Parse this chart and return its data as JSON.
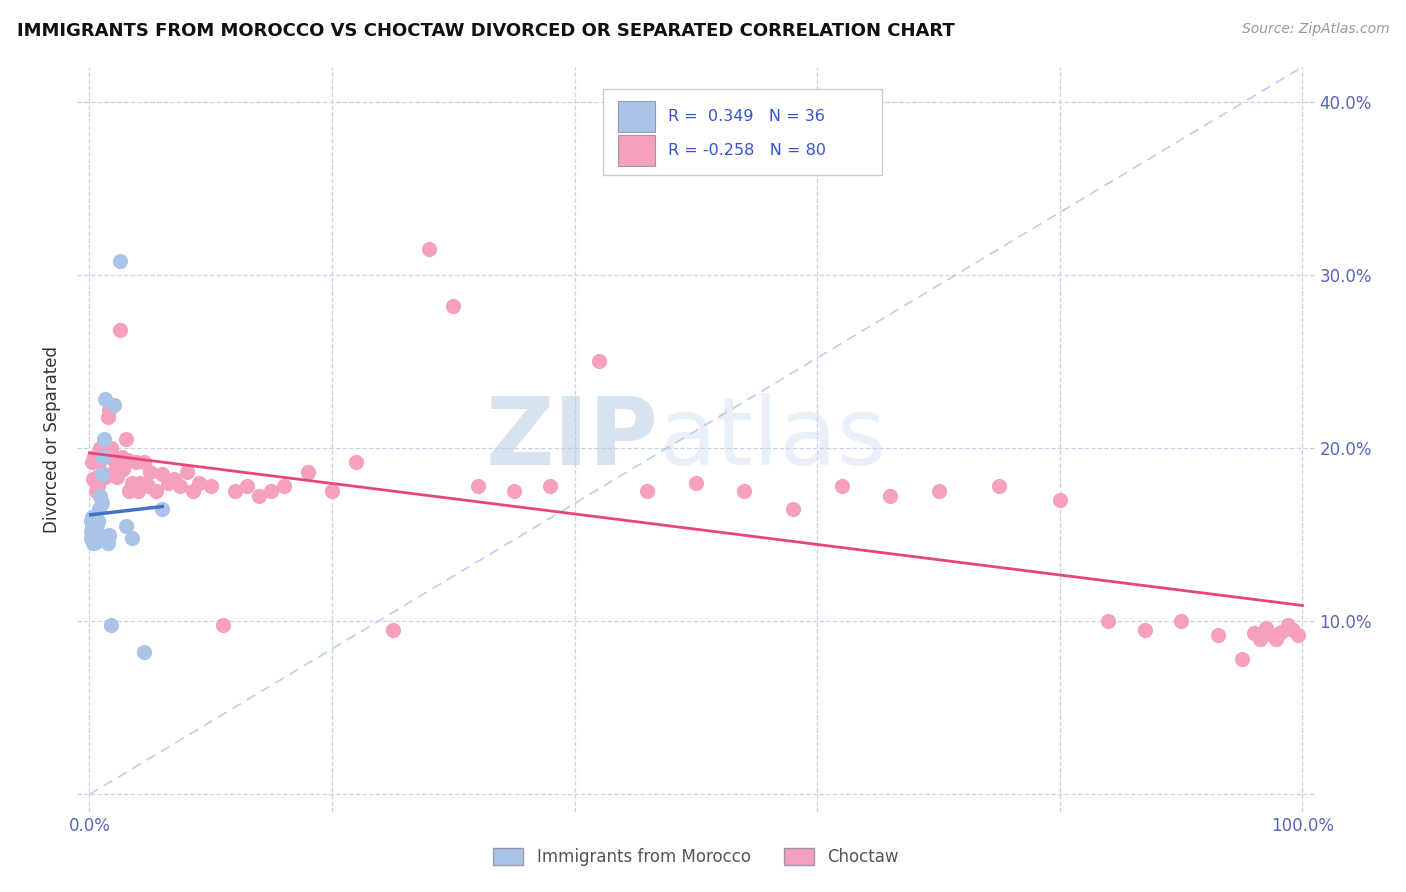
{
  "title": "IMMIGRANTS FROM MOROCCO VS CHOCTAW DIVORCED OR SEPARATED CORRELATION CHART",
  "source": "Source: ZipAtlas.com",
  "ylabel": "Divorced or Separated",
  "xlim": [
    -0.01,
    1.01
  ],
  "ylim": [
    -0.01,
    0.42
  ],
  "x_ticks": [
    0.0,
    0.2,
    0.4,
    0.6,
    0.8,
    1.0
  ],
  "x_tick_labels": [
    "0.0%",
    "",
    "",
    "",
    "",
    "100.0%"
  ],
  "y_ticks": [
    0.0,
    0.1,
    0.2,
    0.3,
    0.4
  ],
  "y_tick_labels_right": [
    "",
    "10.0%",
    "20.0%",
    "30.0%",
    "40.0%"
  ],
  "color_blue": "#aac4e8",
  "color_pink": "#f5a0be",
  "line_blue": "#4472c4",
  "line_pink": "#e8457a",
  "line_diag": "#b0c4de",
  "watermark_zip": "ZIP",
  "watermark_atlas": "atlas",
  "blue_scatter_x": [
    0.001,
    0.001,
    0.001,
    0.002,
    0.002,
    0.002,
    0.003,
    0.003,
    0.003,
    0.003,
    0.004,
    0.004,
    0.005,
    0.005,
    0.005,
    0.006,
    0.006,
    0.006,
    0.007,
    0.007,
    0.008,
    0.009,
    0.01,
    0.01,
    0.011,
    0.012,
    0.013,
    0.015,
    0.016,
    0.018,
    0.02,
    0.025,
    0.03,
    0.035,
    0.045,
    0.06
  ],
  "blue_scatter_y": [
    0.148,
    0.152,
    0.158,
    0.147,
    0.153,
    0.16,
    0.145,
    0.149,
    0.154,
    0.16,
    0.15,
    0.157,
    0.146,
    0.15,
    0.155,
    0.148,
    0.152,
    0.156,
    0.15,
    0.158,
    0.165,
    0.172,
    0.168,
    0.185,
    0.195,
    0.205,
    0.228,
    0.145,
    0.15,
    0.098,
    0.225,
    0.308,
    0.155,
    0.148,
    0.082,
    0.165
  ],
  "pink_scatter_x": [
    0.002,
    0.003,
    0.004,
    0.005,
    0.006,
    0.007,
    0.008,
    0.009,
    0.01,
    0.011,
    0.012,
    0.013,
    0.015,
    0.016,
    0.017,
    0.018,
    0.02,
    0.022,
    0.023,
    0.025,
    0.027,
    0.028,
    0.03,
    0.032,
    0.033,
    0.035,
    0.038,
    0.04,
    0.042,
    0.045,
    0.048,
    0.05,
    0.055,
    0.06,
    0.065,
    0.07,
    0.075,
    0.08,
    0.085,
    0.09,
    0.1,
    0.11,
    0.12,
    0.13,
    0.14,
    0.15,
    0.16,
    0.18,
    0.2,
    0.22,
    0.25,
    0.28,
    0.3,
    0.32,
    0.35,
    0.38,
    0.42,
    0.46,
    0.5,
    0.54,
    0.58,
    0.62,
    0.66,
    0.7,
    0.75,
    0.8,
    0.84,
    0.87,
    0.9,
    0.93,
    0.95,
    0.96,
    0.965,
    0.97,
    0.975,
    0.978,
    0.982,
    0.988,
    0.992,
    0.996
  ],
  "pink_scatter_y": [
    0.192,
    0.182,
    0.195,
    0.175,
    0.183,
    0.178,
    0.192,
    0.2,
    0.198,
    0.195,
    0.185,
    0.183,
    0.218,
    0.222,
    0.195,
    0.2,
    0.193,
    0.188,
    0.183,
    0.268,
    0.195,
    0.188,
    0.205,
    0.193,
    0.175,
    0.18,
    0.192,
    0.175,
    0.18,
    0.192,
    0.178,
    0.186,
    0.175,
    0.185,
    0.18,
    0.182,
    0.178,
    0.186,
    0.175,
    0.18,
    0.178,
    0.098,
    0.175,
    0.178,
    0.172,
    0.175,
    0.178,
    0.186,
    0.175,
    0.192,
    0.095,
    0.315,
    0.282,
    0.178,
    0.175,
    0.178,
    0.25,
    0.175,
    0.18,
    0.175,
    0.165,
    0.178,
    0.172,
    0.175,
    0.178,
    0.17,
    0.1,
    0.095,
    0.1,
    0.092,
    0.078,
    0.093,
    0.09,
    0.096,
    0.092,
    0.09,
    0.094,
    0.098,
    0.095,
    0.092
  ]
}
